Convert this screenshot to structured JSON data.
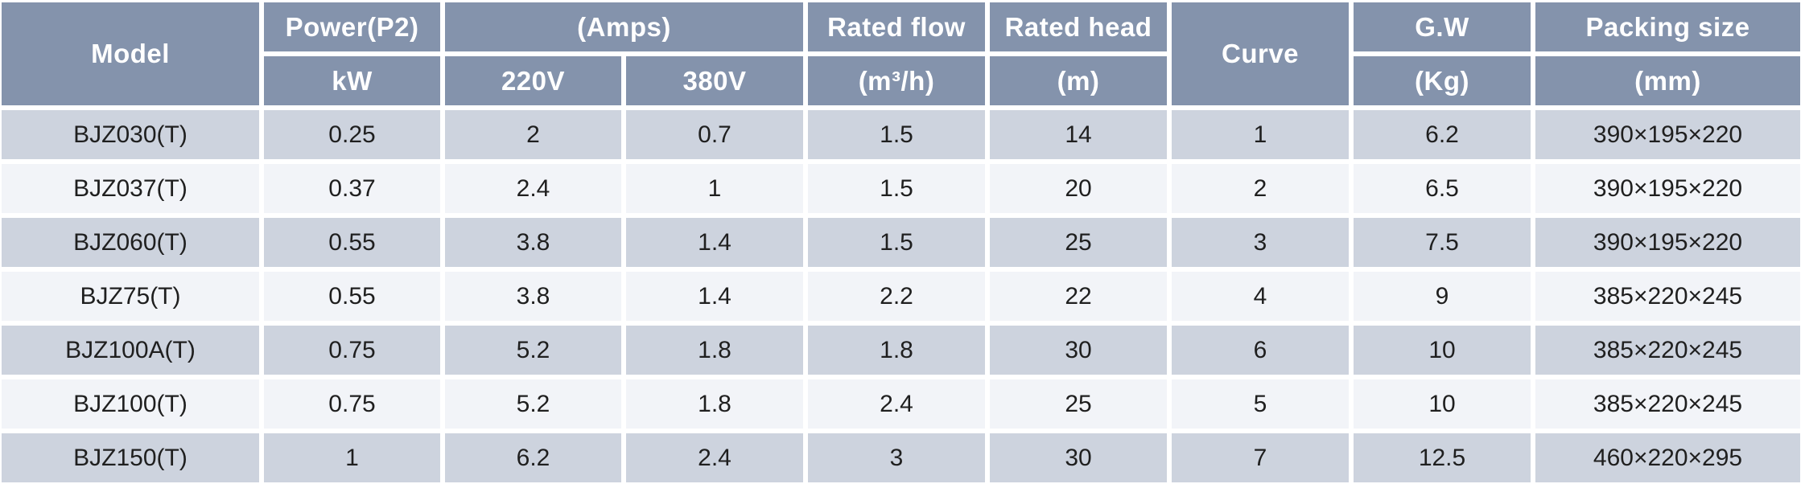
{
  "theme": {
    "header_bg": "#8493AC",
    "header_text": "#FFFFFF",
    "row_odd_bg": "#CDD3DE",
    "row_even_bg": "#F2F4F8",
    "body_text": "#1F1F1F",
    "gridline_color": "#FFFFFF"
  },
  "table": {
    "header": {
      "model": "Model",
      "power_title": "Power(P2)",
      "power_unit": "kW",
      "amps_title": "(Amps)",
      "amps_220": "220V",
      "amps_380": "380V",
      "flow_title": "Rated flow",
      "flow_unit": "(m³/h)",
      "head_title": "Rated head",
      "head_unit": "(m)",
      "curve": "Curve",
      "gw_title": "G.W",
      "gw_unit": "(Kg)",
      "packing_title": "Packing size",
      "packing_unit": "(mm)"
    },
    "column_keys": [
      "model",
      "power-kw",
      "amps-220v",
      "amps-380v",
      "rated-flow",
      "rated-head",
      "curve",
      "gw-kg",
      "packing-size"
    ],
    "rows": [
      [
        "BJZ030(T)",
        "0.25",
        "2",
        "0.7",
        "1.5",
        "14",
        "1",
        "6.2",
        "390×195×220"
      ],
      [
        "BJZ037(T)",
        "0.37",
        "2.4",
        "1",
        "1.5",
        "20",
        "2",
        "6.5",
        "390×195×220"
      ],
      [
        "BJZ060(T)",
        "0.55",
        "3.8",
        "1.4",
        "1.5",
        "25",
        "3",
        "7.5",
        "390×195×220"
      ],
      [
        "BJZ75(T)",
        "0.55",
        "3.8",
        "1.4",
        "2.2",
        "22",
        "4",
        "9",
        "385×220×245"
      ],
      [
        "BJZ100A(T)",
        "0.75",
        "5.2",
        "1.8",
        "1.8",
        "30",
        "6",
        "10",
        "385×220×245"
      ],
      [
        "BJZ100(T)",
        "0.75",
        "5.2",
        "1.8",
        "2.4",
        "25",
        "5",
        "10",
        "385×220×245"
      ],
      [
        "BJZ150(T)",
        "1",
        "6.2",
        "2.4",
        "3",
        "30",
        "7",
        "12.5",
        "460×220×295"
      ]
    ]
  }
}
